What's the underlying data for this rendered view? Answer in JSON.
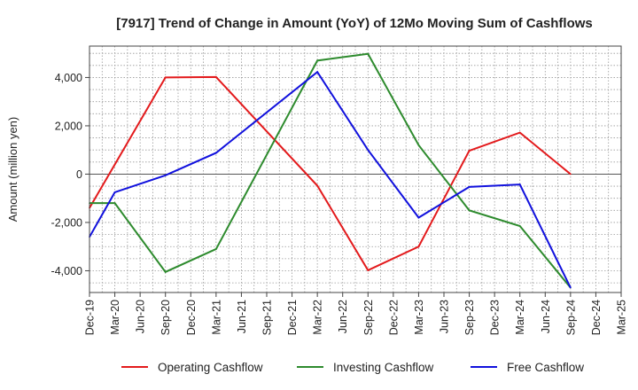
{
  "chart_data": {
    "type": "line",
    "title": "[7917]  Trend of Change in Amount (YoY) of 12Mo Moving Sum of Cashflows",
    "xlabel": "",
    "ylabel": "Amount (million yen)",
    "ylim": [
      -4900,
      5300
    ],
    "yticks": [
      -4000,
      -2000,
      0,
      2000,
      4000
    ],
    "ytick_labels": [
      "-4,000",
      "-2,000",
      "0",
      "2,000",
      "4,000"
    ],
    "categories": [
      "Dec-19",
      "Mar-20",
      "Jun-20",
      "Sep-20",
      "Dec-20",
      "Mar-21",
      "Jun-21",
      "Sep-21",
      "Dec-21",
      "Mar-22",
      "Jun-22",
      "Sep-22",
      "Dec-22",
      "Mar-23",
      "Jun-23",
      "Sep-23",
      "Dec-23",
      "Mar-24",
      "Jun-24",
      "Sep-24",
      "Dec-24",
      "Mar-25"
    ],
    "grid": true,
    "legend_position": "bottom",
    "series": [
      {
        "name": "Operating Cashflow",
        "color": "#e31a1c",
        "values": [
          -1400,
          null,
          null,
          4000,
          null,
          4020,
          null,
          null,
          null,
          -480,
          null,
          -3980,
          null,
          -3000,
          null,
          970,
          null,
          1720,
          null,
          0,
          null,
          null
        ]
      },
      {
        "name": "Investing Cashflow",
        "color": "#2e8b2e",
        "values": [
          -1200,
          -1200,
          null,
          -4050,
          null,
          -3100,
          null,
          null,
          null,
          4700,
          null,
          4980,
          null,
          1200,
          null,
          -1500,
          null,
          -2150,
          null,
          -4700,
          null,
          null
        ]
      },
      {
        "name": "Free Cashflow",
        "color": "#1111dd",
        "values": [
          -2600,
          -750,
          null,
          -50,
          null,
          880,
          null,
          null,
          null,
          4230,
          null,
          1000,
          null,
          -1800,
          null,
          -530,
          null,
          -430,
          null,
          -4700,
          null,
          null
        ]
      }
    ]
  }
}
